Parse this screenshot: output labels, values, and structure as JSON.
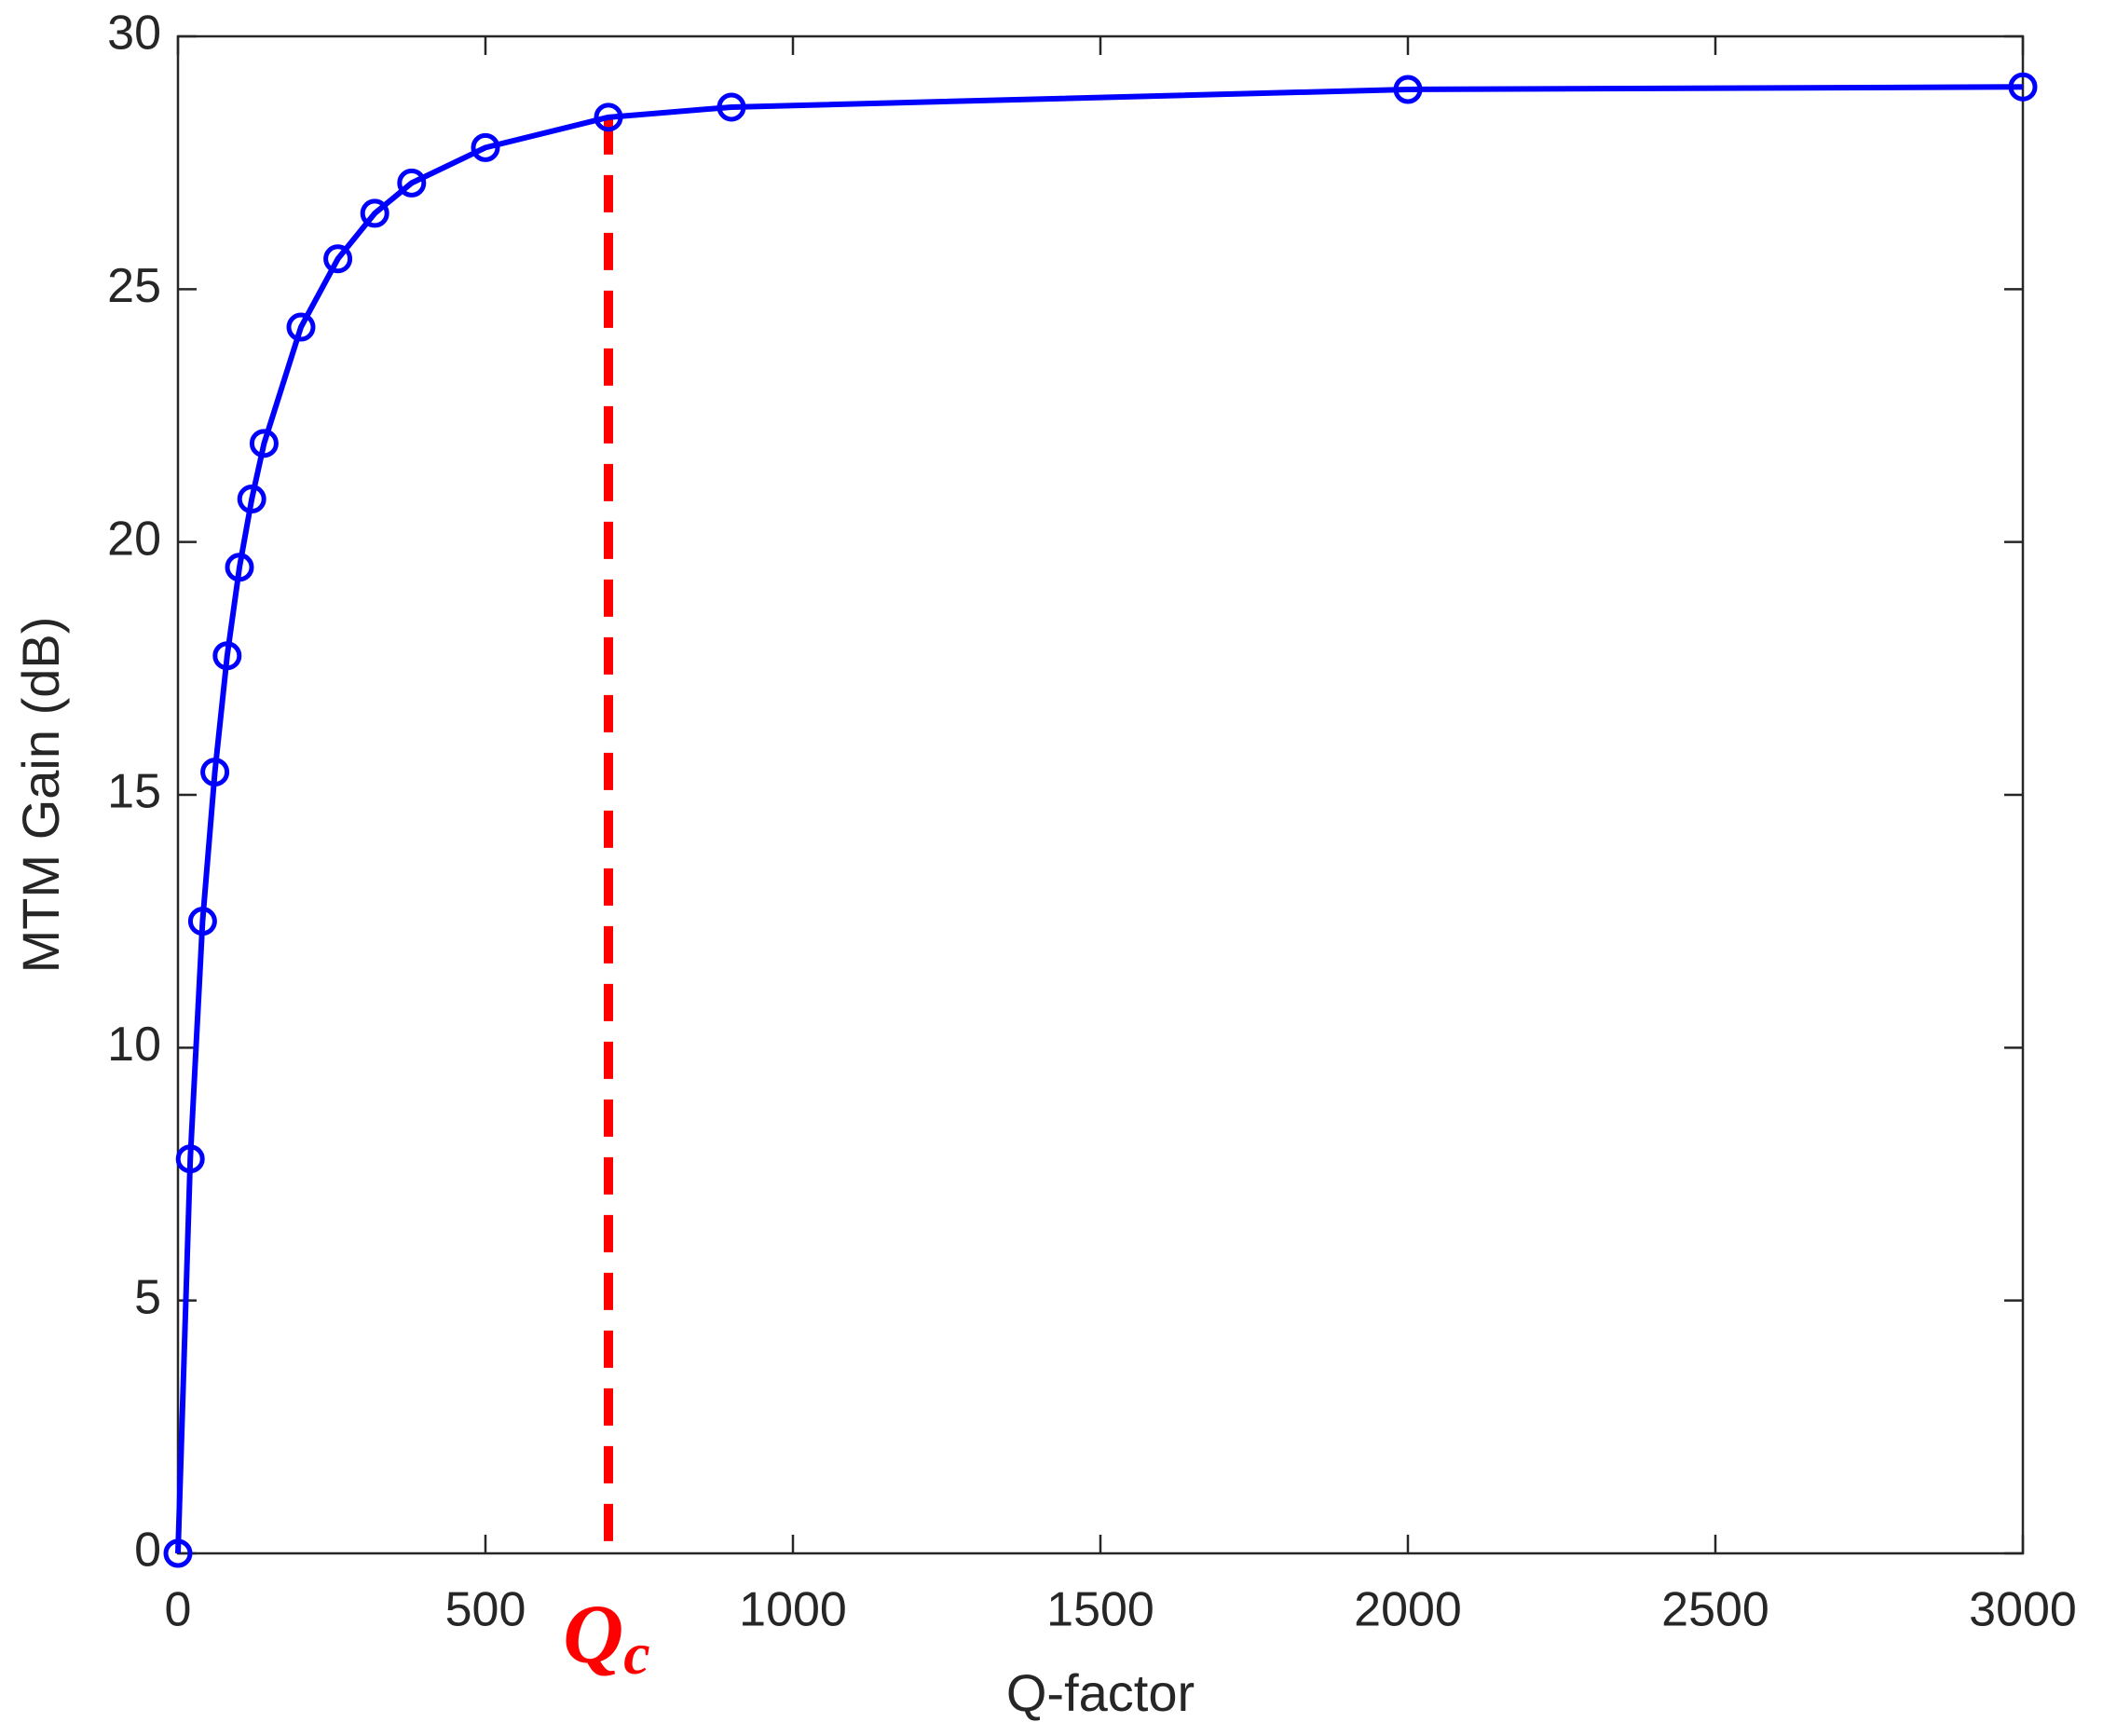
{
  "chart_data": {
    "type": "line",
    "xlabel": "Q-factor",
    "ylabel": "MTM Gain (dB)",
    "x": [
      0,
      20,
      40,
      60,
      80,
      100,
      120,
      140,
      200,
      260,
      320,
      380,
      500,
      700,
      900,
      2000,
      3000
    ],
    "values": [
      0,
      7.8,
      12.5,
      15.45,
      17.75,
      19.5,
      20.85,
      21.95,
      24.25,
      25.6,
      26.5,
      27.1,
      27.8,
      28.4,
      28.6,
      28.95,
      29.0
    ],
    "color": "#0000ff",
    "xlim": [
      0,
      3000
    ],
    "xticks": [
      0,
      500,
      1000,
      1500,
      2000,
      2500,
      3000
    ],
    "ylim": [
      0,
      30
    ],
    "yticks": [
      0,
      5,
      10,
      15,
      20,
      25,
      30
    ],
    "grid": false,
    "annotation": {
      "text": "Q",
      "subscript": "c",
      "x": 700,
      "y": 28.4,
      "color": "#ff0000"
    }
  }
}
